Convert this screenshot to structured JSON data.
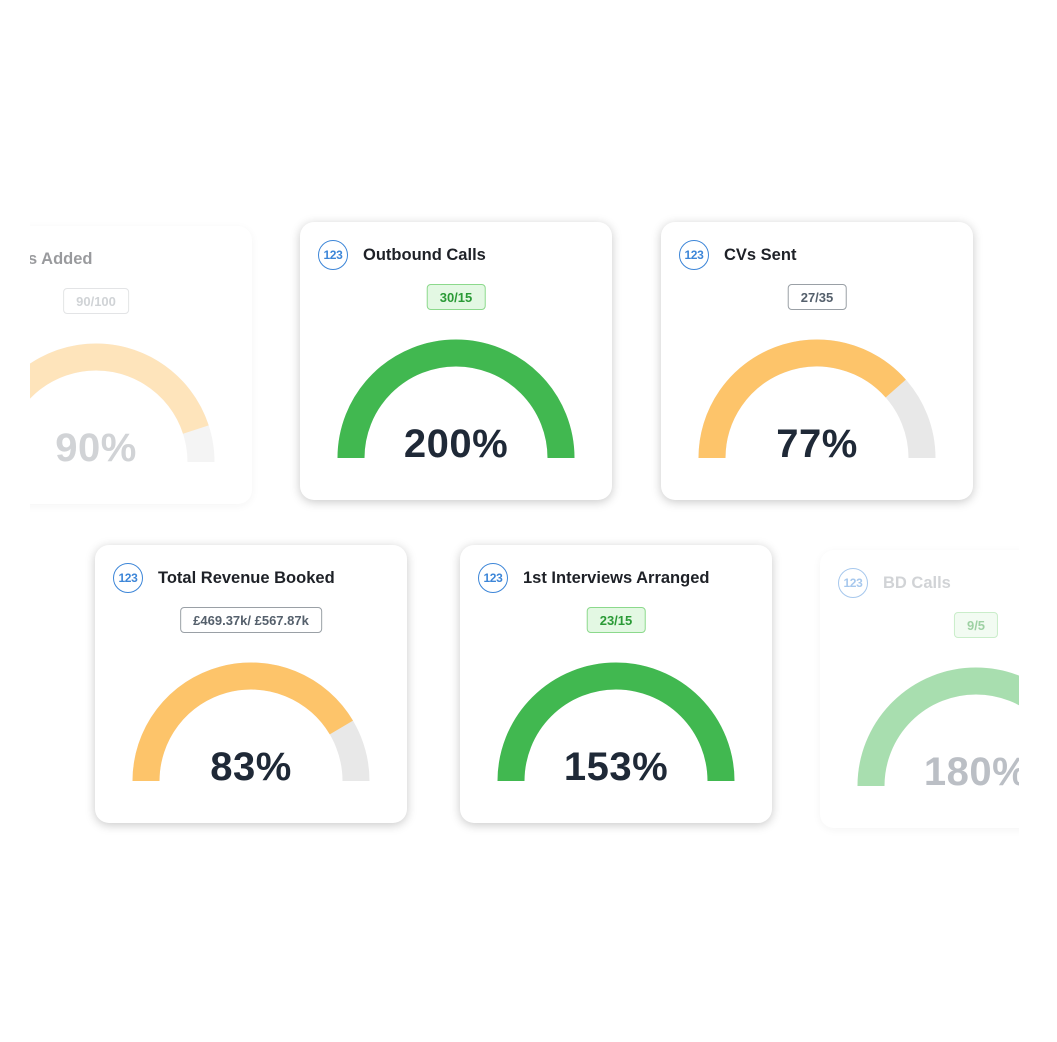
{
  "colors": {
    "green": "#41b850",
    "orange": "#fdc46a",
    "track": "#e8e8e8",
    "icon_blue": "#3d86d8",
    "text_dark": "#1f2937"
  },
  "cards": {
    "placements_added": {
      "title": "s Added",
      "icon": "123",
      "ratio": "90/100",
      "percent": "90%",
      "progress": 0.9,
      "color": "orange"
    },
    "outbound_calls": {
      "title": "Outbound Calls",
      "icon": "123",
      "ratio": "30/15",
      "percent": "200%",
      "progress": 1.0,
      "color": "green"
    },
    "cvs_sent": {
      "title": "CVs Sent",
      "icon": "123",
      "ratio": "27/35",
      "percent": "77%",
      "progress": 0.77,
      "color": "orange"
    },
    "total_revenue_booked": {
      "title": "Total Revenue Booked",
      "icon": "123",
      "ratio": "£469.37k/ £567.87k",
      "percent": "83%",
      "progress": 0.83,
      "color": "orange"
    },
    "first_interviews_arranged": {
      "title": "1st Interviews Arranged",
      "icon": "123",
      "ratio": "23/15",
      "percent": "153%",
      "progress": 1.0,
      "color": "green"
    },
    "bd_calls": {
      "title": "BD Calls",
      "icon": "123",
      "ratio": "9/5",
      "percent": "180%",
      "progress": 1.0,
      "color": "green"
    }
  }
}
